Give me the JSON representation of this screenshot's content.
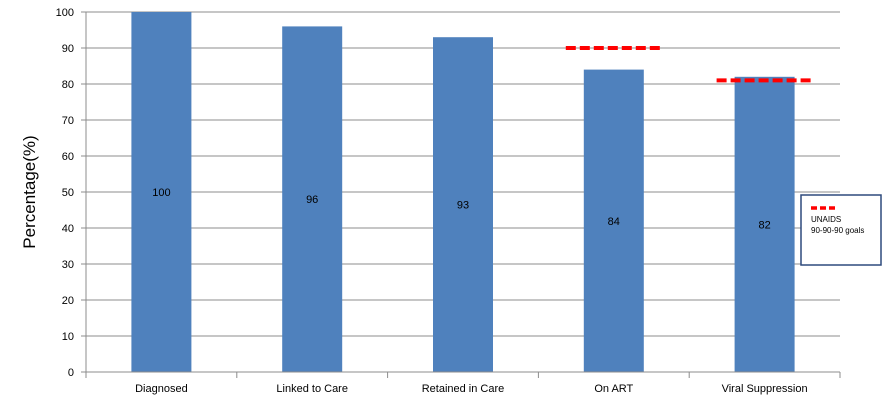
{
  "chart_data": {
    "type": "bar",
    "categories": [
      "Diagnosed",
      "Linked to Care",
      "Retained in Care",
      "On ART",
      "Viral Suppression"
    ],
    "values": [
      100,
      96,
      93,
      84,
      82
    ],
    "data_labels": [
      "100",
      "96",
      "93",
      "84",
      "82"
    ],
    "ylabel": "Percentage(%)",
    "ylim": [
      0,
      100
    ],
    "yticks": [
      0,
      10,
      20,
      30,
      40,
      50,
      60,
      70,
      80,
      90,
      100
    ],
    "grid": true,
    "bar_color": "#4F81BD",
    "goal_color": "#FF0000",
    "goal_lines": [
      {
        "category": "On ART",
        "value": 90
      },
      {
        "category": "Viral Suppression",
        "value": 81
      }
    ],
    "legend": {
      "position": "right",
      "line1": "UNAIDS",
      "line2": "90-90-90 goals"
    }
  }
}
